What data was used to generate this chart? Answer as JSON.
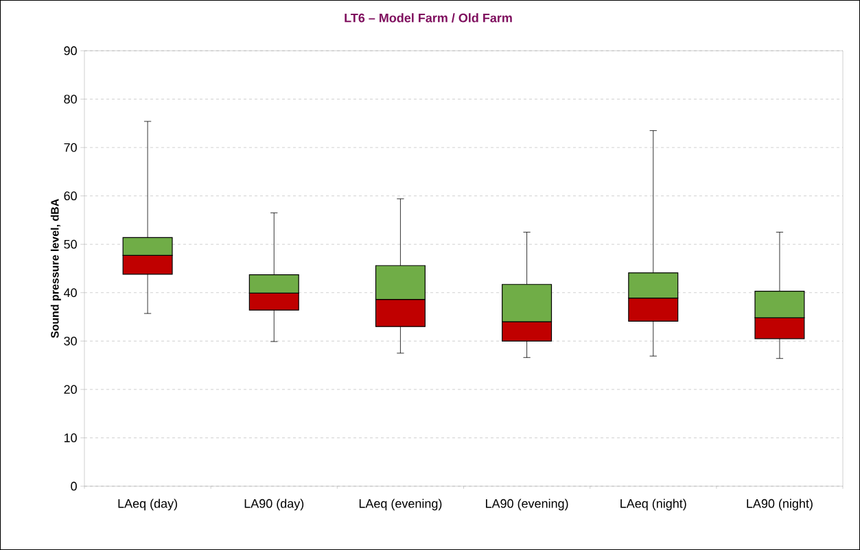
{
  "chart_data": {
    "type": "box",
    "title": "LT6 – Model Farm / Old Farm",
    "ylabel": "Sound pressure level, dBA",
    "categories": [
      "LAeq (day)",
      "LA90 (day)",
      "LAeq (evening)",
      "LA90 (evening)",
      "LAeq (night)",
      "LA90 (night)"
    ],
    "boxes": [
      {
        "low": 35.7,
        "q1": 43.8,
        "median": 47.7,
        "q3": 51.4,
        "high": 75.4
      },
      {
        "low": 29.9,
        "q1": 36.4,
        "median": 39.9,
        "q3": 43.7,
        "high": 56.5
      },
      {
        "low": 27.5,
        "q1": 33.0,
        "median": 38.6,
        "q3": 45.6,
        "high": 59.4
      },
      {
        "low": 26.6,
        "q1": 30.0,
        "median": 34.0,
        "q3": 41.7,
        "high": 52.5
      },
      {
        "low": 26.9,
        "q1": 34.1,
        "median": 38.9,
        "q3": 44.1,
        "high": 73.5
      },
      {
        "low": 26.4,
        "q1": 30.5,
        "median": 34.8,
        "q3": 40.3,
        "high": 52.5
      }
    ],
    "colors": [
      [
        "#c00000",
        "#70ad47"
      ],
      [
        "#c00000",
        "#70ad47"
      ],
      [
        "#c00000",
        "#70ad47"
      ],
      [
        "#c00000",
        "#70ad47"
      ],
      [
        "#c00000",
        "#70ad47"
      ],
      [
        "#c00000",
        "#70ad47"
      ]
    ],
    "ylim": [
      0,
      90
    ],
    "yticks": [
      0,
      10,
      20,
      30,
      40,
      50,
      60,
      70,
      80,
      90
    ],
    "grid": "y"
  }
}
